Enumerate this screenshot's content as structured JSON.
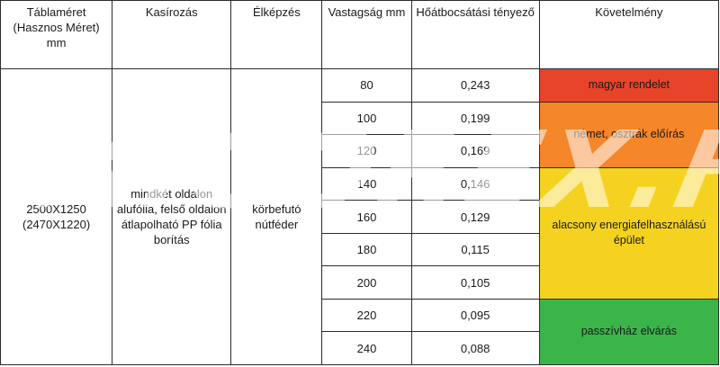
{
  "headers": {
    "size": "Táblaméret (Hasznos Méret) mm",
    "lamination": "Kasírozás",
    "edge": "Élképzés",
    "thickness": "Vastagság mm",
    "conductivity": "Hőátbocsátási tényező",
    "requirement": "Követelmény"
  },
  "product": {
    "size": "2500X1250 (2470X1220)",
    "lamination": "mindkét oldalon alufólia, felső oldalon átlapolható PP fólia borítás",
    "edge": "körbefutó nútféder"
  },
  "rows": [
    {
      "thickness": "80",
      "value": "0,243"
    },
    {
      "thickness": "100",
      "value": "0,199"
    },
    {
      "thickness": "120",
      "value": "0,169"
    },
    {
      "thickness": "140",
      "value": "0,146"
    },
    {
      "thickness": "160",
      "value": "0,129"
    },
    {
      "thickness": "180",
      "value": "0,115"
    },
    {
      "thickness": "200",
      "value": "0,105"
    },
    {
      "thickness": "220",
      "value": "0,095"
    },
    {
      "thickness": "240",
      "value": "0,088"
    }
  ],
  "requirements": [
    {
      "label": "magyar rendelet",
      "color": "#e8442a"
    },
    {
      "label": "német, osztrák előírás",
      "color": "#f5862a"
    },
    {
      "label": "alacsony energiafelhasználású épület",
      "color": "#f5d21f"
    },
    {
      "label": "passzívház elvárás",
      "color": "#3bb54a"
    }
  ],
  "watermark": "MIGOREX.HU"
}
